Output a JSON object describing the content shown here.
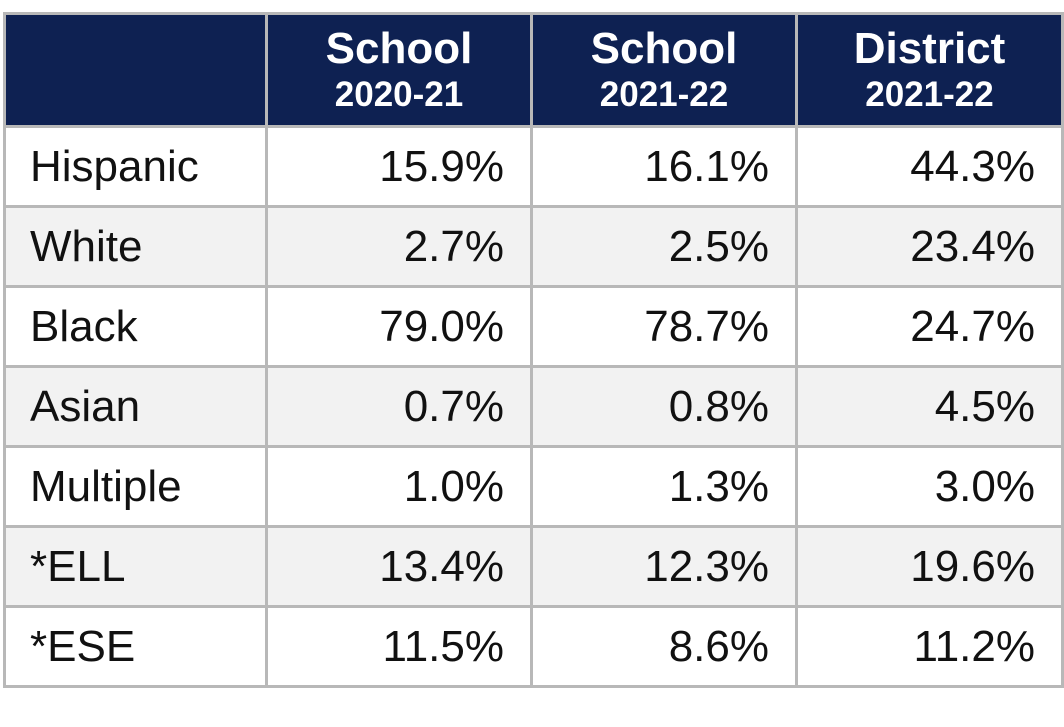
{
  "table": {
    "header": [
      {
        "title": "School",
        "period": "2020-21"
      },
      {
        "title": "School",
        "period": "2021-22"
      },
      {
        "title": "District",
        "period": "2021-22"
      }
    ],
    "rows": [
      [
        "Hispanic",
        "15.9%",
        "16.1%",
        "44.3%"
      ],
      [
        "White",
        "2.7%",
        "2.5%",
        "23.4%"
      ],
      [
        "Black",
        "79.0%",
        "78.7%",
        "24.7%"
      ],
      [
        "Asian",
        "0.7%",
        "0.8%",
        "4.5%"
      ],
      [
        "Multiple",
        "1.0%",
        "1.3%",
        "3.0%"
      ],
      [
        "*ELL",
        "13.4%",
        "12.3%",
        "19.6%"
      ],
      [
        "*ESE",
        "11.5%",
        "8.6%",
        "11.2%"
      ]
    ]
  }
}
